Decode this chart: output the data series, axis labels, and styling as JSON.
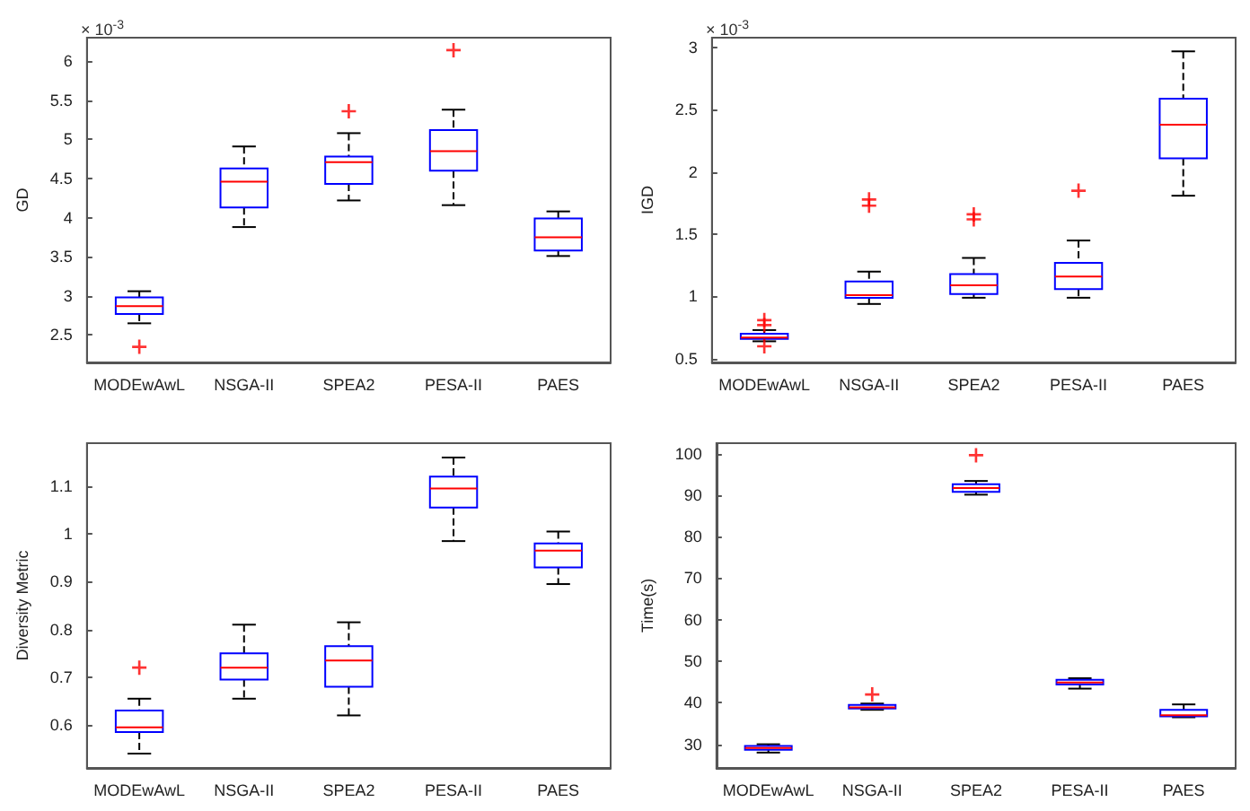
{
  "chart_data": [
    {
      "type": "box",
      "ylabel": "GD",
      "annotations": [
        "× 10$^{-3}$"
      ],
      "categories": [
        "MODEwAwL",
        "NSGA-II",
        "SPEA2",
        "PESA-II",
        "PAES"
      ],
      "ylim": [
        2.15,
        6.3
      ],
      "yticks": [
        2.5,
        3,
        3.5,
        4,
        4.5,
        5,
        5.5,
        6
      ],
      "grid": false,
      "series": [
        {
          "color": "#0000ff",
          "boxes": [
            {
              "low": 2.65,
              "q1": 2.77,
              "median": 2.87,
              "q3": 2.98,
              "high": 3.06,
              "outliers": [
                2.35
              ]
            },
            {
              "low": 3.88,
              "q1": 4.13,
              "median": 4.46,
              "q3": 4.63,
              "high": 4.91
            },
            {
              "low": 4.22,
              "q1": 4.43,
              "median": 4.71,
              "q3": 4.78,
              "high": 5.08,
              "outliers": [
                5.36
              ]
            },
            {
              "low": 4.16,
              "q1": 4.6,
              "median": 4.85,
              "q3": 5.12,
              "high": 5.38,
              "outliers": [
                6.14
              ]
            },
            {
              "low": 3.51,
              "q1": 3.58,
              "median": 3.75,
              "q3": 3.99,
              "high": 4.08
            }
          ]
        }
      ]
    },
    {
      "type": "box",
      "ylabel": "IGD",
      "annotations": [
        "× 10$^{-3}$"
      ],
      "categories": [
        "MODEwAwL",
        "NSGA-II",
        "SPEA2",
        "PESA-II",
        "PAES"
      ],
      "ylim": [
        0.47,
        3.08
      ],
      "yticks": [
        0.5,
        1,
        1.5,
        2,
        2.5,
        3
      ],
      "grid": false,
      "series": [
        {
          "color": "#0000ff",
          "boxes": [
            {
              "low": 0.64,
              "q1": 0.66,
              "median": 0.67,
              "q3": 0.7,
              "high": 0.73,
              "outliers": [
                0.81,
                0.77,
                0.6
              ]
            },
            {
              "low": 0.94,
              "q1": 0.99,
              "median": 1.01,
              "q3": 1.12,
              "high": 1.2,
              "outliers": [
                1.78,
                1.73
              ]
            },
            {
              "low": 0.99,
              "q1": 1.02,
              "median": 1.09,
              "q3": 1.18,
              "high": 1.31,
              "outliers": [
                1.66,
                1.62
              ]
            },
            {
              "low": 0.99,
              "q1": 1.06,
              "median": 1.16,
              "q3": 1.27,
              "high": 1.45,
              "outliers": [
                1.85
              ]
            },
            {
              "low": 1.81,
              "q1": 2.11,
              "median": 2.38,
              "q3": 2.59,
              "high": 2.97
            }
          ]
        }
      ]
    },
    {
      "type": "box",
      "ylabel": "Diversity Metric",
      "categories": [
        "MODEwAwL",
        "NSGA-II",
        "SPEA2",
        "PESA-II",
        "PAES"
      ],
      "ylim": [
        0.51,
        1.19
      ],
      "yticks": [
        0.6,
        0.7,
        0.8,
        0.9,
        1,
        1.1
      ],
      "grid": false,
      "series": [
        {
          "color": "#0000ff",
          "boxes": [
            {
              "low": 0.54,
              "q1": 0.585,
              "median": 0.595,
              "q3": 0.63,
              "high": 0.655,
              "outliers": [
                0.72
              ]
            },
            {
              "low": 0.655,
              "q1": 0.695,
              "median": 0.72,
              "q3": 0.75,
              "high": 0.81
            },
            {
              "low": 0.62,
              "q1": 0.68,
              "median": 0.735,
              "q3": 0.765,
              "high": 0.815
            },
            {
              "low": 0.985,
              "q1": 1.055,
              "median": 1.095,
              "q3": 1.12,
              "high": 1.16
            },
            {
              "low": 0.895,
              "q1": 0.93,
              "median": 0.965,
              "q3": 0.98,
              "high": 1.005
            }
          ]
        }
      ]
    },
    {
      "type": "box",
      "ylabel": "Time(s)",
      "categories": [
        "MODEwAwL",
        "NSGA-II",
        "SPEA2",
        "PESA-II",
        "PAES"
      ],
      "ylim": [
        24.3,
        102.5
      ],
      "yticks": [
        30,
        40,
        50,
        60,
        70,
        80,
        90,
        100
      ],
      "grid": false,
      "series": [
        {
          "color": "#0000ff",
          "boxes": [
            {
              "low": 28,
              "q1": 28.7,
              "median": 29.1,
              "q3": 29.6,
              "high": 30
            },
            {
              "low": 38.3,
              "q1": 38.6,
              "median": 38.9,
              "q3": 39.5,
              "high": 39.8,
              "outliers": [
                42
              ]
            },
            {
              "low": 90.1,
              "q1": 90.8,
              "median": 91.7,
              "q3": 92.6,
              "high": 93.4,
              "outliers": [
                99.6
              ]
            },
            {
              "low": 43.4,
              "q1": 44.4,
              "median": 44.9,
              "q3": 45.5,
              "high": 45.9
            },
            {
              "low": 36.5,
              "q1": 36.7,
              "median": 37,
              "q3": 38.3,
              "high": 39.6
            }
          ]
        }
      ]
    }
  ]
}
